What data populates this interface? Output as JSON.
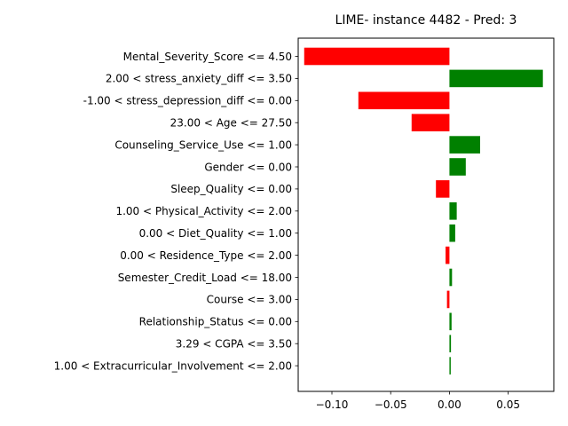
{
  "chart_data": {
    "type": "bar",
    "orientation": "horizontal",
    "title": "LIME- instance 4482 - Pred: 3",
    "xlabel": "",
    "ylabel": "",
    "xlim": [
      -0.1287,
      0.0888
    ],
    "xticks": [
      -0.1,
      -0.05,
      0.0,
      0.05
    ],
    "xtick_labels": [
      "−0.10",
      "−0.05",
      "0.00",
      "0.05"
    ],
    "grid": false,
    "positive_color": "#008000",
    "negative_color": "#ff0000",
    "categories": [
      "Mental_Severity_Score <= 4.50",
      "2.00 < stress_anxiety_diff <= 3.50",
      "-1.00 < stress_depression_diff <= 0.00",
      "23.00 < Age <= 27.50",
      "Counseling_Service_Use <= 1.00",
      "Gender <= 0.00",
      "Sleep_Quality <= 0.00",
      "1.00 < Physical_Activity <= 2.00",
      "0.00 < Diet_Quality <= 1.00",
      "0.00 < Residence_Type <= 2.00",
      "Semester_Credit_Load <= 18.00",
      "Course <= 3.00",
      "Relationship_Status <= 0.00",
      "3.29 < CGPA <= 3.50",
      "1.00 < Extracurricular_Involvement <= 2.00"
    ],
    "values": [
      -0.1236,
      0.0795,
      -0.0775,
      -0.0322,
      0.0261,
      0.0139,
      -0.0115,
      0.0062,
      0.0049,
      -0.0033,
      0.0022,
      -0.0021,
      0.0018,
      0.0013,
      0.0011
    ]
  }
}
